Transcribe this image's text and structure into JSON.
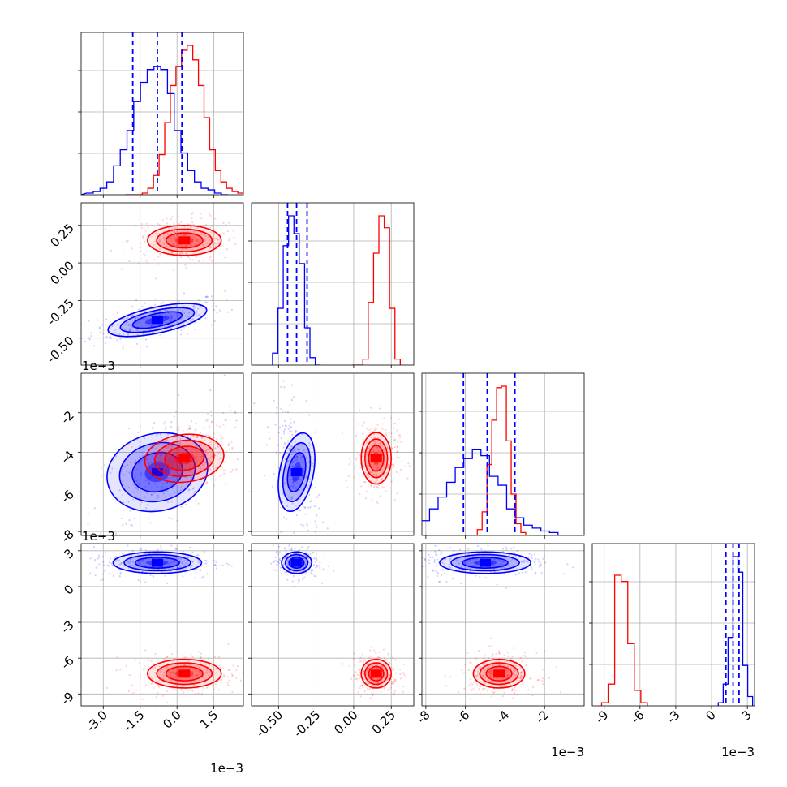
{
  "chart_data": {
    "type": "scatter",
    "variant": "corner plot",
    "grid": true,
    "params": [
      {
        "key": "p0",
        "range": [
          -3.9,
          2.7
        ],
        "ticks": [
          "-3.0",
          "-1.5",
          "0.0",
          "1.5"
        ],
        "tick_values": [
          -3.0,
          -1.5,
          0.0,
          1.5
        ],
        "offset_text": "1e−3"
      },
      {
        "key": "p1",
        "range": [
          -0.68,
          0.4
        ],
        "ticks": [
          "-0.50",
          "-0.25",
          "0.00",
          "0.25"
        ],
        "tick_values": [
          -0.5,
          -0.25,
          0.0,
          0.25
        ],
        "offset_text": "1e−3"
      },
      {
        "key": "p2",
        "range": [
          -8.2,
          0.0
        ],
        "ticks": [
          "-8",
          "-6",
          "-4",
          "-2"
        ],
        "tick_values": [
          -8,
          -6,
          -4,
          -2
        ],
        "offset_text": "1e−3"
      },
      {
        "key": "p3",
        "range": [
          -10.0,
          3.6
        ],
        "ticks": [
          "-9",
          "-6",
          "-3",
          "0",
          "3"
        ],
        "tick_values": [
          -9,
          -6,
          -3,
          0,
          3
        ],
        "offset_text": "1e−3"
      }
    ],
    "series": [
      {
        "color": "#0000ff",
        "mean": [
          -0.8,
          -0.38,
          -5.0,
          2.0
        ],
        "sd": [
          0.9,
          0.05,
          1.15,
          0.45
        ],
        "corr01": 0.55,
        "corr02": 0.6,
        "corr12": -0.5,
        "quantiles": [
          [
            -1.8,
            -0.8,
            0.2
          ],
          [
            -0.44,
            -0.38,
            -0.31
          ],
          [
            -6.1,
            -4.9,
            -3.5
          ],
          [
            1.2,
            1.8,
            2.3
          ]
        ]
      },
      {
        "color": "#ff0000",
        "mean": [
          0.3,
          0.15,
          -4.3,
          -7.3
        ],
        "sd": [
          0.75,
          0.05,
          0.65,
          0.6
        ],
        "corr01": 0.0,
        "corr02": 0.3,
        "corr12": 0.0
      }
    ],
    "hist_heights": {
      "p0_blue": [
        1,
        2,
        4,
        8,
        18,
        28,
        40,
        58,
        70,
        78,
        80,
        78,
        63,
        40,
        26,
        15,
        8,
        4,
        3,
        1,
        0
      ],
      "p0_red": [
        0,
        0,
        0,
        1,
        4,
        12,
        25,
        45,
        68,
        80,
        90,
        93,
        84,
        68,
        48,
        28,
        15,
        8,
        4,
        2,
        1
      ],
      "p1_blue": [
        8,
        38,
        80,
        100,
        88,
        68,
        25,
        5,
        0
      ],
      "p1_red": [
        0,
        0,
        4,
        42,
        75,
        100,
        92,
        38,
        4
      ],
      "p2_blue": [
        4,
        10,
        18,
        26,
        36,
        46,
        52,
        58,
        54,
        40,
        34,
        18,
        12,
        7,
        5,
        3,
        2
      ],
      "p2_red": [
        0,
        0,
        0,
        0,
        4,
        16,
        48,
        78,
        100,
        101,
        64,
        28,
        8,
        2,
        0,
        0,
        0
      ],
      "p3_blue": [
        2,
        14,
        44,
        96,
        86,
        26,
        6
      ],
      "p3_red": [
        2,
        14,
        84,
        80,
        40,
        10,
        2
      ]
    }
  }
}
